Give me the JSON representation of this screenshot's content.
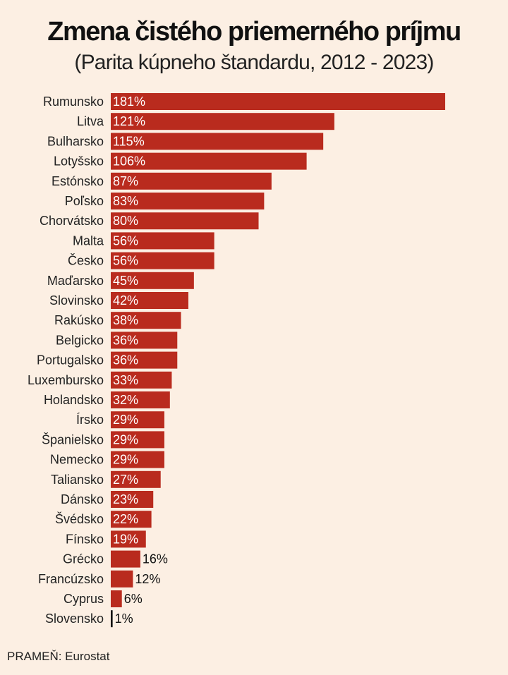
{
  "title": "Zmena čistého priemerného príjmu",
  "subtitle": "(Parita kúpneho štandardu, 2012 - 2023)",
  "source": "PRAMEŇ: Eurostat",
  "colors": {
    "bar": "#b92b1e",
    "bar_small": "#111111",
    "background": "#fcefe3",
    "label_inside": "#ffffff",
    "label_outside": "#111111"
  },
  "chart_data": {
    "type": "bar",
    "orientation": "horizontal",
    "categories": [
      "Rumunsko",
      "Litva",
      "Bulharsko",
      "Lotyšsko",
      "Estónsko",
      "Poľsko",
      "Chorvátsko",
      "Malta",
      "Česko",
      "Maďarsko",
      "Slovinsko",
      "Rakúsko",
      "Belgicko",
      "Portugalsko",
      "Luxembursko",
      "Holandsko",
      "Írsko",
      "Španielsko",
      "Nemecko",
      "Taliansko",
      "Dánsko",
      "Švédsko",
      "Fínsko",
      "Grécko",
      "Francúzsko",
      "Cyprus",
      "Slovensko"
    ],
    "values": [
      181,
      121,
      115,
      106,
      87,
      83,
      80,
      56,
      56,
      45,
      42,
      38,
      36,
      36,
      33,
      32,
      29,
      29,
      29,
      27,
      23,
      22,
      19,
      16,
      12,
      6,
      1
    ],
    "value_labels": [
      "181%",
      "121%",
      "115%",
      "106%",
      "87%",
      "83%",
      "80%",
      "56%",
      "56%",
      "45%",
      "42%",
      "38%",
      "36%",
      "36%",
      "33%",
      "32%",
      "29%",
      "29%",
      "29%",
      "27%",
      "23%",
      "22%",
      "19%",
      "16%",
      "12%",
      "6%",
      "1%"
    ],
    "title": "Zmena čistého priemerného príjmu",
    "subtitle": "(Parita kúpneho štandardu, 2012 - 2023)",
    "xlabel": "",
    "ylabel": "",
    "xlim": [
      0,
      181
    ],
    "grid": false,
    "legend": "none"
  }
}
